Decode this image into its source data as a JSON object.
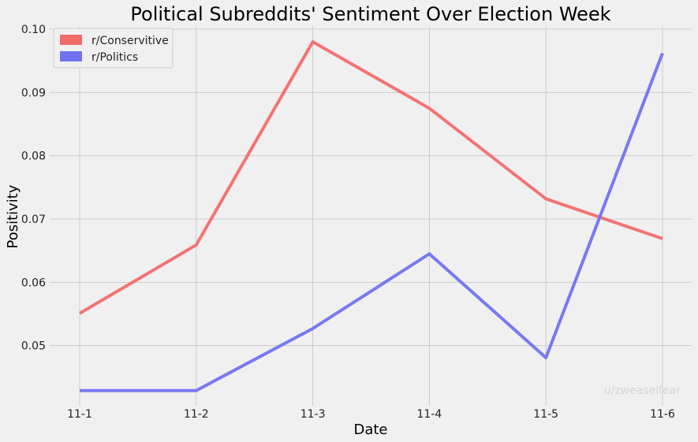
{
  "chart_data": {
    "type": "line",
    "title": "Political Subreddits' Sentiment Over Election Week",
    "xlabel": "Date",
    "ylabel": "Positivity",
    "categories": [
      "11-1",
      "11-2",
      "11-3",
      "11-4",
      "11-5",
      "11-6"
    ],
    "ylim": [
      0.0405,
      0.1005
    ],
    "yticks": [
      0.05,
      0.06,
      0.07,
      0.08,
      0.09,
      0.1
    ],
    "ytick_labels": [
      "0.05",
      "0.06",
      "0.07",
      "0.08",
      "0.09",
      "0.10"
    ],
    "grid": true,
    "legend_position": "top-left",
    "series": [
      {
        "name": "r/Conservitive",
        "color": "#f26b6b",
        "values": [
          0.0551,
          0.0659,
          0.098,
          0.0875,
          0.0732,
          0.0669
        ]
      },
      {
        "name": "r/Politics",
        "color": "#7272f0",
        "values": [
          0.0429,
          0.0429,
          0.0527,
          0.0645,
          0.0481,
          0.0962
        ]
      }
    ],
    "watermark": "u/zweaselfear"
  }
}
